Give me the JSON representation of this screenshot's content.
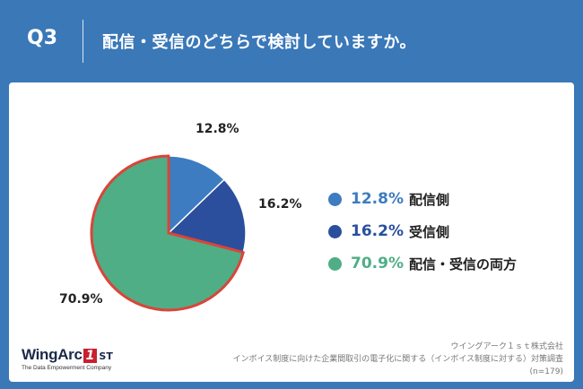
{
  "header": {
    "question_number": "Q3",
    "question_text": "配信・受信のどちらで検討していますか。"
  },
  "chart_data": {
    "type": "pie",
    "categories": [
      "配信側",
      "受信側",
      "配信・受信の両方"
    ],
    "values": [
      12.8,
      16.2,
      70.9
    ],
    "labels": [
      "12.8%",
      "16.2%",
      "70.9%"
    ],
    "colors": [
      "#3d7cc0",
      "#2b4f9c",
      "#4fae86"
    ],
    "highlight_border_color": "#d9453a",
    "legend_position": "right",
    "start_angle": "12 o'clock",
    "direction": "clockwise"
  },
  "legend": [
    {
      "pct": "12.8%",
      "name": "配信側",
      "color": "#3d7cc0"
    },
    {
      "pct": "16.2%",
      "name": "受信側",
      "color": "#2b4f9c"
    },
    {
      "pct": "70.9%",
      "name": "配信・受信の両方",
      "color": "#4fae86"
    }
  ],
  "logo": {
    "main": "WingArc",
    "badge": "1",
    "suffix": "ST",
    "tagline": "The Data Empowerment Company"
  },
  "footer": {
    "company": "ウイングアーク１ｓｔ株式会社",
    "survey": "インボイス制度に向けた企業間取引の電子化に関する（インボイス制度に対する）対策調査",
    "sample": "(n=179)"
  },
  "colors": {
    "header_bg": "#3a78b8",
    "panel_bg": "#ffffff"
  }
}
